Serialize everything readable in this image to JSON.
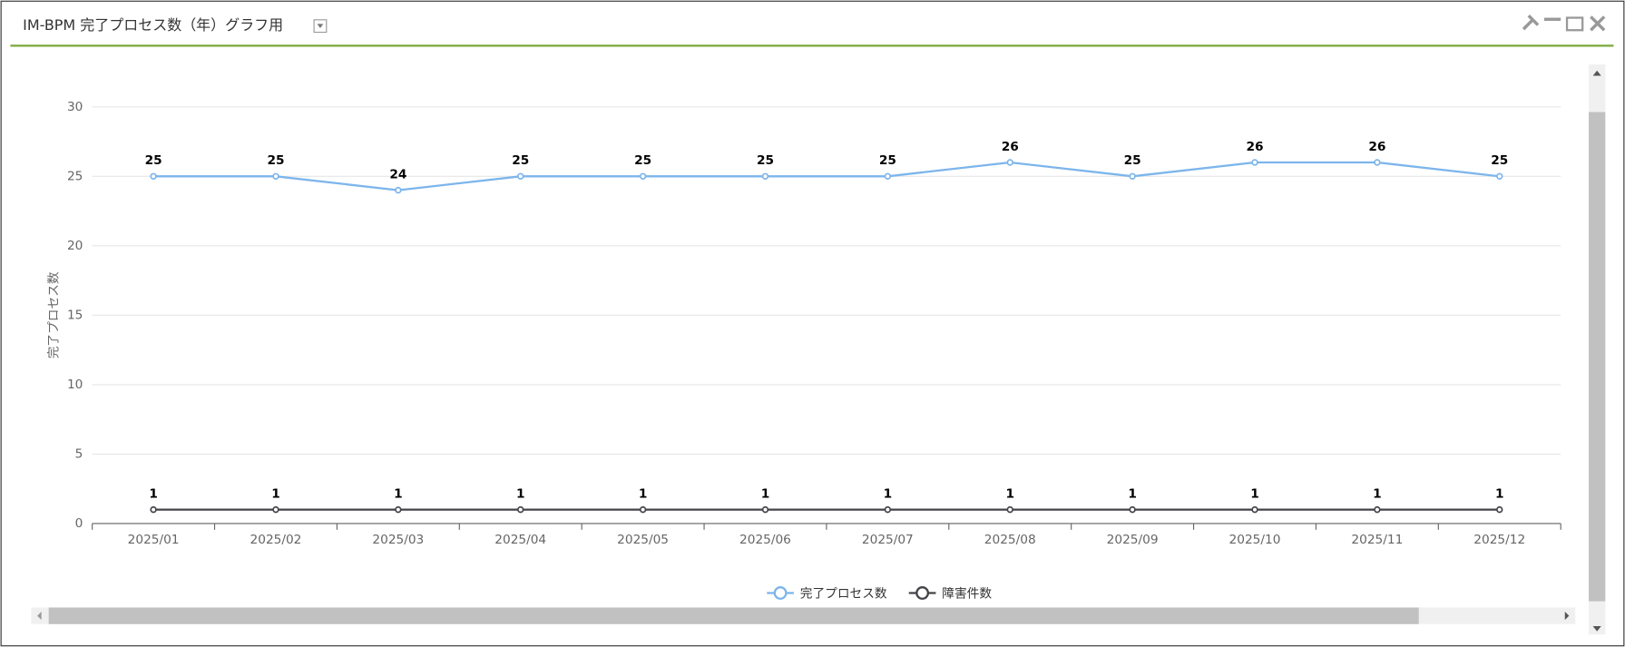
{
  "chart_data": {
    "type": "line",
    "title": "IM-BPM 完了プロセス数（年）グラフ用",
    "y_label": "完了プロセス数",
    "categories": [
      "2025/01",
      "2025/02",
      "2025/03",
      "2025/04",
      "2025/05",
      "2025/06",
      "2025/07",
      "2025/08",
      "2025/09",
      "2025/10",
      "2025/11",
      "2025/12"
    ],
    "series": [
      {
        "name": "完了プロセス数",
        "color": "#7cb5ec",
        "values": [
          25,
          25,
          24,
          25,
          25,
          25,
          25,
          26,
          25,
          26,
          26,
          25
        ]
      },
      {
        "name": "障害件数",
        "color": "#434348",
        "values": [
          1,
          1,
          1,
          1,
          1,
          1,
          1,
          1,
          1,
          1,
          1,
          1
        ]
      }
    ],
    "ylim": [
      0,
      30
    ],
    "yticks": [
      0,
      5,
      10,
      15,
      20,
      25,
      30
    ],
    "grid": true,
    "legend": "bottom"
  }
}
